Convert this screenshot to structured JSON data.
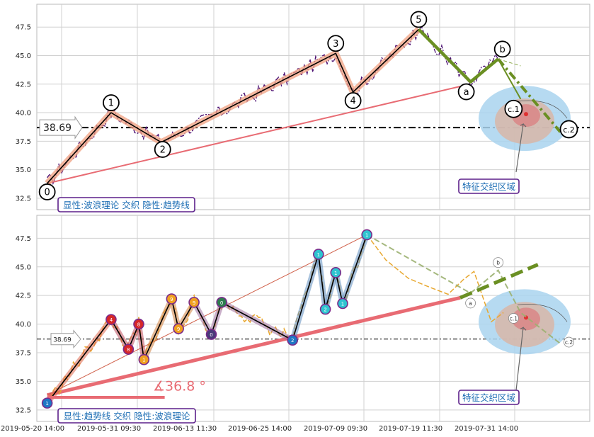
{
  "chart_data": [
    {
      "type": "line",
      "panel": "top",
      "x_tick_labels": [
        "2019-05-20 14:00",
        "2019-05-31 09:30",
        "2019-06-13 11:30",
        "2019-06-25 14:00",
        "2019-07-09 09:30",
        "2019-07-19 11:30",
        "2019-07-31 14:00"
      ],
      "ylim": [
        31.5,
        49.5
      ],
      "y_ticks": [
        "32.5",
        "35.0",
        "37.5",
        "40.0",
        "42.5",
        "45.0",
        "47.5"
      ],
      "grid": true,
      "price_level": {
        "value": 38.69,
        "label": "38.69"
      },
      "wave_points": [
        {
          "label": "0",
          "t": 0.6,
          "y": 33.8
        },
        {
          "label": "1",
          "t": 4.3,
          "y": 40.0
        },
        {
          "label": "2",
          "t": 7.2,
          "y": 37.4
        },
        {
          "label": "3",
          "t": 17.3,
          "y": 45.2
        },
        {
          "label": "4",
          "t": 18.3,
          "y": 41.8
        },
        {
          "label": "5",
          "t": 22.1,
          "y": 47.3
        },
        {
          "label": "a",
          "t": 25.1,
          "y": 42.7
        },
        {
          "label": "b",
          "t": 26.7,
          "y": 44.7
        },
        {
          "label": "c.1",
          "t": 28.0,
          "y": 41.2
        },
        {
          "label": "c.2",
          "t": 30.3,
          "y": 38.3
        }
      ],
      "trendline": {
        "from": {
          "t": 0.6,
          "y": 33.8
        },
        "to": {
          "t": 24.5,
          "y": 42.3
        }
      },
      "zone_label": "特征交织区域",
      "info_box": "显性:波浪理论 交织 隐性:趋势线"
    },
    {
      "type": "line",
      "panel": "bottom",
      "x_tick_labels": [
        "2019-05-20 14:00",
        "2019-05-31 09:30",
        "2019-06-13 11:30",
        "2019-06-25 14:00",
        "2019-07-09 09:30",
        "2019-07-19 11:30",
        "2019-07-31 14:00"
      ],
      "ylim": [
        31.5,
        49.5
      ],
      "y_ticks": [
        "32.5",
        "35.0",
        "37.5",
        "40.0",
        "42.5",
        "45.0",
        "47.5"
      ],
      "grid": true,
      "price_level": {
        "value": 38.69,
        "label": "38.69"
      },
      "wave_points": [
        {
          "label": "1",
          "t": 0.6,
          "y": 33.1
        },
        {
          "label": "4",
          "t": 4.3,
          "y": 40.4
        },
        {
          "label": "8",
          "t": 5.3,
          "y": 37.8
        },
        {
          "label": "8",
          "t": 5.9,
          "y": 40.0
        },
        {
          "label": "1",
          "t": 6.2,
          "y": 36.9
        },
        {
          "label": "9",
          "t": 7.8,
          "y": 42.2
        },
        {
          "label": "9",
          "t": 8.2,
          "y": 39.6
        },
        {
          "label": "9",
          "t": 9.1,
          "y": 41.9
        },
        {
          "label": "0",
          "t": 10.1,
          "y": 39.1
        },
        {
          "label": "0",
          "t": 10.7,
          "y": 41.9
        },
        {
          "label": "2",
          "t": 14.8,
          "y": 38.6
        },
        {
          "label": "1",
          "t": 16.3,
          "y": 46.1
        },
        {
          "label": "2",
          "t": 16.7,
          "y": 41.3
        },
        {
          "label": "1",
          "t": 17.3,
          "y": 44.5
        },
        {
          "label": "1",
          "t": 17.7,
          "y": 41.8
        },
        {
          "label": "1",
          "t": 19.1,
          "y": 47.8
        }
      ],
      "trendline": {
        "from": {
          "t": 0.6,
          "y": 33.8
        },
        "to": {
          "t": 24.5,
          "y": 42.3
        }
      },
      "angle_label": "∡36.8 °",
      "zone_label": "特征交织区域",
      "info_box": "显性:趋势线 交织 隐性:波浪理论",
      "projected_labels": [
        "a",
        "b",
        "c.1",
        "c.2"
      ]
    }
  ]
}
